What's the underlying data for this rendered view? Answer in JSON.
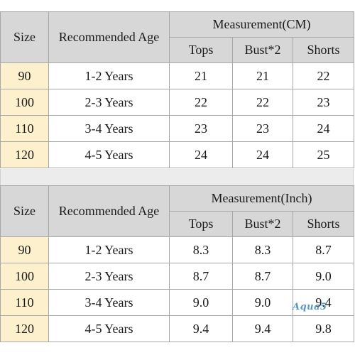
{
  "tables": [
    {
      "id": "cm",
      "headers": {
        "size": "Size",
        "age": "Recommended Age",
        "group": "Measurement(CM)",
        "columns": [
          "Tops",
          "Bust*2",
          "Shorts"
        ]
      },
      "rows": [
        {
          "size": "90",
          "age": "1-2 Years",
          "values": [
            "21",
            "21",
            "22"
          ]
        },
        {
          "size": "100",
          "age": "2-3 Years",
          "values": [
            "22",
            "22",
            "23"
          ]
        },
        {
          "size": "110",
          "age": "3-4 Years",
          "values": [
            "23",
            "23",
            "24"
          ]
        },
        {
          "size": "120",
          "age": "4-5 Years",
          "values": [
            "24",
            "24",
            "25"
          ]
        }
      ]
    },
    {
      "id": "inch",
      "headers": {
        "size": "Size",
        "age": "Recommended Age",
        "group": "Measurement(Inch)",
        "columns": [
          "Tops",
          "Bust*2",
          "Shorts"
        ]
      },
      "rows": [
        {
          "size": "90",
          "age": "1-2 Years",
          "values": [
            "8.3",
            "8.3",
            "8.7"
          ]
        },
        {
          "size": "100",
          "age": "2-3 Years",
          "values": [
            "8.7",
            "8.7",
            "9.0"
          ]
        },
        {
          "size": "110",
          "age": "3-4 Years",
          "values": [
            "9.0",
            "9.0",
            "9.4"
          ]
        },
        {
          "size": "120",
          "age": "4-5 Years",
          "values": [
            "9.4",
            "9.4",
            "9.8"
          ]
        }
      ]
    }
  ],
  "watermark": "Aqua5"
}
